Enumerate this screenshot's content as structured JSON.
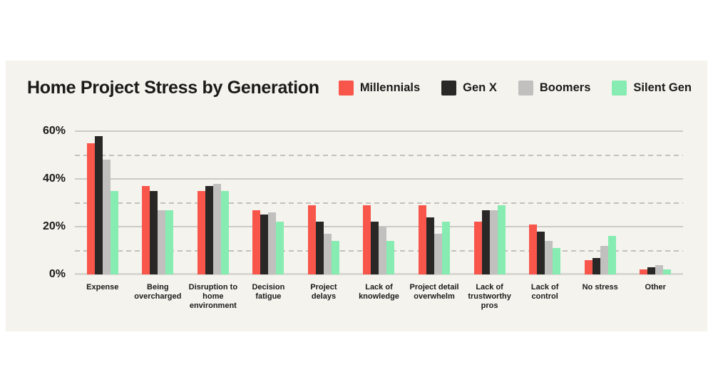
{
  "title": "Home Project Stress by Generation",
  "legend": [
    {
      "label": "Millennials",
      "color": "#F8564B"
    },
    {
      "label": "Gen X",
      "color": "#292826"
    },
    {
      "label": "Boomers",
      "color": "#C1C0BE"
    },
    {
      "label": "Silent Gen",
      "color": "#87ECB1"
    }
  ],
  "chart_data": {
    "type": "bar",
    "title": "Home Project Stress by Generation",
    "categories": [
      "Expense",
      "Being overcharged",
      "Disruption to home environment",
      "Decision fatigue",
      "Project delays",
      "Lack of knowledge",
      "Project detail overwhelm",
      "Lack of trustworthy pros",
      "Lack of control",
      "No stress",
      "Other"
    ],
    "series": [
      {
        "name": "Millennials",
        "color": "#F8564B",
        "values": [
          55,
          37,
          35,
          27,
          29,
          29,
          29,
          22,
          21,
          6,
          2
        ]
      },
      {
        "name": "Gen X",
        "color": "#292826",
        "values": [
          58,
          35,
          37,
          25,
          22,
          22,
          24,
          27,
          18,
          7,
          3
        ]
      },
      {
        "name": "Boomers",
        "color": "#C1C0BE",
        "values": [
          48,
          27,
          38,
          26,
          17,
          20,
          17,
          27,
          14,
          12,
          4
        ]
      },
      {
        "name": "Silent Gen",
        "color": "#87ECB1",
        "values": [
          35,
          27,
          35,
          22,
          14,
          14,
          22,
          29,
          11,
          16,
          2
        ]
      }
    ],
    "xlabel": "",
    "ylabel": "",
    "ylim": [
      0,
      60
    ],
    "yticks": [
      0,
      20,
      40,
      60
    ],
    "ytick_labels": [
      "0%",
      "20%",
      "40%",
      "60%"
    ],
    "grid": {
      "solid": [
        20,
        40,
        60
      ],
      "dashed": [
        10,
        30,
        50
      ],
      "baseline": 0
    },
    "legend_position": "top-right",
    "unit": "%"
  }
}
